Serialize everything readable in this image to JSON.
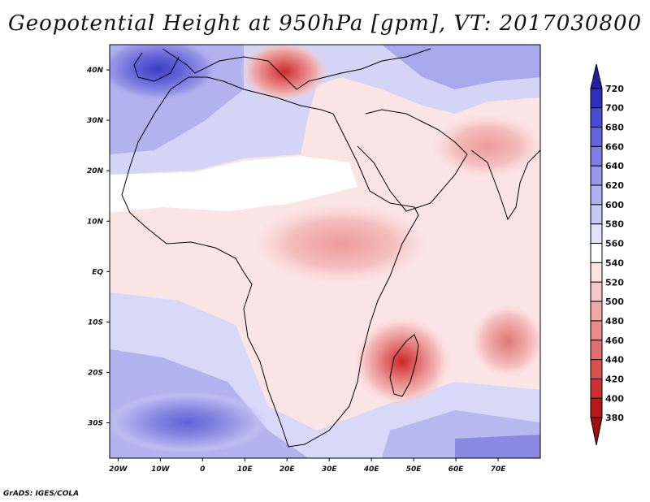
{
  "title": "Geopotential Height at 950hPa [gpm], VT: 2017030800",
  "credit": "GrADS: IGES/COLA",
  "x_ticks": [
    "20W",
    "10W",
    "0",
    "10E",
    "20E",
    "30E",
    "40E",
    "50E",
    "60E",
    "70E"
  ],
  "y_ticks": [
    "40N",
    "30N",
    "20N",
    "10N",
    "EQ",
    "10S",
    "20S",
    "30S"
  ],
  "colorbar": {
    "labels": [
      "720",
      "700",
      "680",
      "660",
      "640",
      "620",
      "600",
      "580",
      "560",
      "540",
      "520",
      "500",
      "480",
      "460",
      "440",
      "420",
      "400",
      "380"
    ],
    "colors": [
      "#2020a0",
      "#2f2fbe",
      "#4a4ad2",
      "#6464dc",
      "#7d7de4",
      "#9696ea",
      "#b0b0f0",
      "#c8c8f5",
      "#e2e2fa",
      "#ffffff",
      "#fbe2e2",
      "#f6c5c5",
      "#efa9a9",
      "#e88c8c",
      "#e07070",
      "#d65050",
      "#cc3030",
      "#b81818",
      "#a00f0f"
    ]
  },
  "chart_data": {
    "type": "map",
    "title": "Geopotential Height at 950hPa [gpm], VT: 2017030800",
    "variable": "Geopotential Height",
    "level": "950hPa",
    "units": "gpm",
    "valid_time": "2017030800",
    "lon_range": [
      -22,
      80
    ],
    "lat_range": [
      -37,
      45
    ],
    "features": [
      {
        "type": "low",
        "lon": 47,
        "lat": -17,
        "value": 420
      },
      {
        "type": "low",
        "lon": 74,
        "lat": -14,
        "value": 460
      },
      {
        "type": "low",
        "lon": 18,
        "lat": 38,
        "value": 440
      },
      {
        "type": "high",
        "lon": -12,
        "lat": 40,
        "value": 680
      },
      {
        "type": "high",
        "lon": -5,
        "lat": -30,
        "value": 640
      }
    ]
  }
}
